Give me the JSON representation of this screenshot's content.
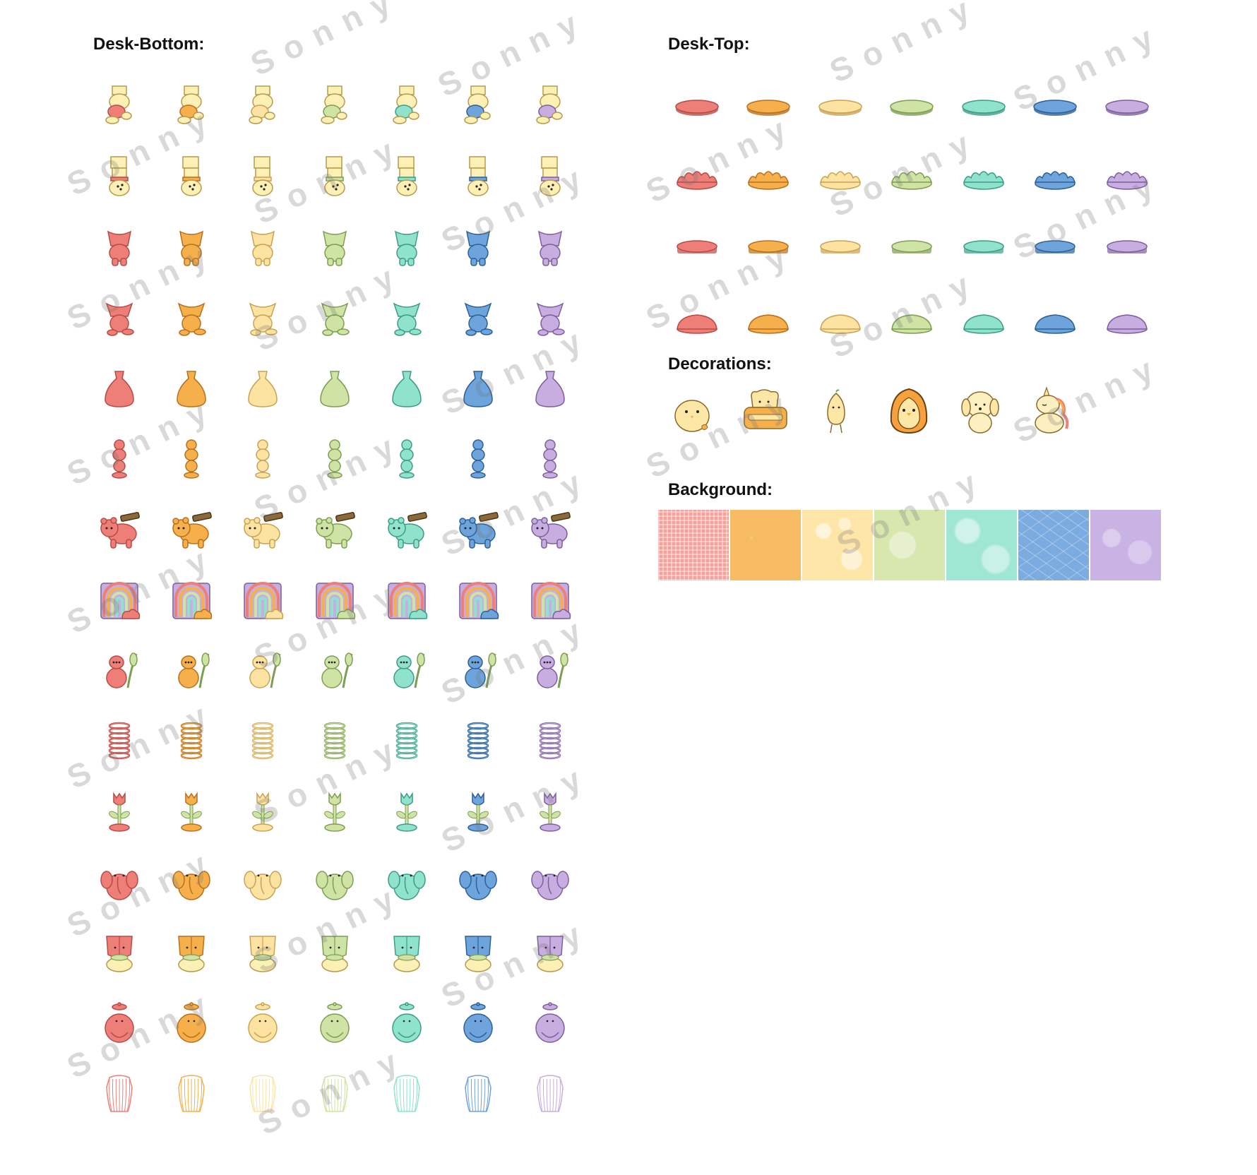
{
  "sections": {
    "desk_bottom": "Desk-Bottom:",
    "desk_top": "Desk-Top:",
    "decorations": "Decorations:",
    "background": "Background:"
  },
  "watermark": "Sonny",
  "palette": [
    {
      "name": "red",
      "fill": "#ee7f78",
      "stroke": "#b84a45"
    },
    {
      "name": "orange",
      "fill": "#f5b04b",
      "stroke": "#b86f1c"
    },
    {
      "name": "yellow",
      "fill": "#fde3a2",
      "stroke": "#c8a252"
    },
    {
      "name": "green",
      "fill": "#cfe3a4",
      "stroke": "#7d9d52"
    },
    {
      "name": "teal",
      "fill": "#8fe2cc",
      "stroke": "#3c9c86"
    },
    {
      "name": "blue",
      "fill": "#6ea4dc",
      "stroke": "#2d5f98"
    },
    {
      "name": "purple",
      "fill": "#c8aee0",
      "stroke": "#7c5f9c"
    }
  ],
  "desk_bottom_rows": [
    "bear-upside-down-icon",
    "bear-hanging-icon",
    "figure-stand-icon",
    "figure-sitting-icon",
    "bell-base-icon",
    "stacked-beads-icon",
    "bear-carrying-plank-icon",
    "rainbow-cloud-icon",
    "cat-holding-leaf-icon",
    "spring-coil-icon",
    "tulip-stand-icon",
    "elephant-icon",
    "pot-creature-icon",
    "round-creature-icon",
    "wire-cage-icon"
  ],
  "desk_top_rows": [
    "round-disc-icon",
    "scalloped-disc-icon",
    "oval-disc-icon",
    "dome-disc-icon"
  ],
  "decorations": [
    "chick-icon",
    "toaster-icon",
    "pear-character-icon",
    "penguin-icon",
    "puppy-icon",
    "unicorn-icon"
  ],
  "backgrounds": [
    {
      "name": "red-gingham",
      "color": "#f3a39d"
    },
    {
      "name": "orange-speckle",
      "color": "#f7bb63"
    },
    {
      "name": "yellow-bokeh",
      "color": "#fde6a8"
    },
    {
      "name": "green-lace",
      "color": "#d7e7ae"
    },
    {
      "name": "teal-clouds",
      "color": "#9fe6d3"
    },
    {
      "name": "blue-crackle",
      "color": "#7cabdf"
    },
    {
      "name": "purple-floral",
      "color": "#c9b2e4"
    }
  ]
}
